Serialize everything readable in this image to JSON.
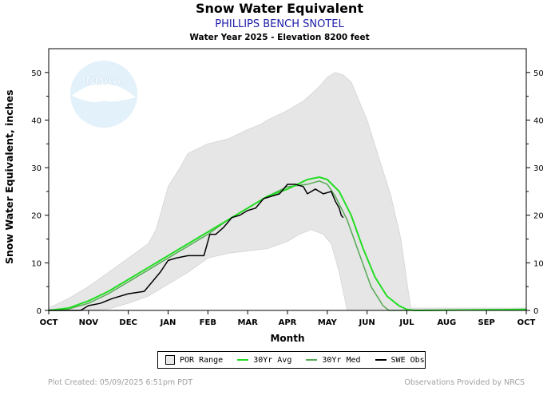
{
  "header": {
    "title": "Snow Water Equivalent",
    "station": "PHILLIPS BENCH SNOTEL",
    "subtitle": "Water Year 2025 -  Elevation 8200 feet"
  },
  "footer": {
    "created": "Plot Created: 05/09/2025 6:51pm PDT",
    "provided": "Observations Provided by NRCS"
  },
  "logo_text": "NOAA",
  "colors": {
    "por_fill": "#e6e6e6",
    "avg": "#22dd22",
    "med": "#55aa55",
    "obs": "#000000"
  },
  "chart_data": {
    "type": "line",
    "title": "Snow Water Equivalent",
    "xlabel": "Month",
    "ylabel": "Snow Water Equivalent, inches",
    "ylim": [
      0,
      55
    ],
    "yticks": [
      0,
      10,
      20,
      30,
      40,
      50
    ],
    "months": [
      "OCT",
      "NOV",
      "DEC",
      "JAN",
      "FEB",
      "MAR",
      "APR",
      "MAY",
      "JUN",
      "JUL",
      "AUG",
      "SEP",
      "OCT"
    ],
    "legend_placement": "bottom-center",
    "legend": [
      "POR Range",
      "30Yr Avg",
      "30Yr Med",
      "SWE Obs"
    ],
    "series": [
      {
        "name": "POR Range",
        "kind": "range",
        "upper": [
          [
            0,
            0.5
          ],
          [
            0.5,
            2.5
          ],
          [
            1,
            5
          ],
          [
            1.5,
            8
          ],
          [
            2,
            11
          ],
          [
            2.5,
            14
          ],
          [
            2.7,
            17
          ],
          [
            3,
            26
          ],
          [
            3.3,
            30
          ],
          [
            3.5,
            33
          ],
          [
            4,
            35
          ],
          [
            4.5,
            36
          ],
          [
            5,
            38
          ],
          [
            5.3,
            39
          ],
          [
            5.5,
            40
          ],
          [
            6,
            42
          ],
          [
            6.4,
            44
          ],
          [
            6.8,
            47
          ],
          [
            7,
            49
          ],
          [
            7.2,
            50
          ],
          [
            7.4,
            49.5
          ],
          [
            7.6,
            48
          ],
          [
            7.8,
            44
          ],
          [
            8,
            40
          ],
          [
            8.3,
            32
          ],
          [
            8.6,
            24
          ],
          [
            8.85,
            15
          ],
          [
            9,
            6
          ],
          [
            9.1,
            0.5
          ],
          [
            12,
            0.5
          ]
        ],
        "lower": [
          [
            0,
            0
          ],
          [
            1,
            0
          ],
          [
            1.5,
            0.3
          ],
          [
            2,
            1.5
          ],
          [
            2.5,
            3
          ],
          [
            3,
            5.5
          ],
          [
            3.5,
            8
          ],
          [
            4,
            11
          ],
          [
            4.5,
            12
          ],
          [
            5,
            12.5
          ],
          [
            5.5,
            13
          ],
          [
            6,
            14.5
          ],
          [
            6.3,
            16
          ],
          [
            6.6,
            17
          ],
          [
            6.9,
            16
          ],
          [
            7.1,
            14
          ],
          [
            7.3,
            8
          ],
          [
            7.45,
            2
          ],
          [
            7.5,
            0
          ],
          [
            12,
            0
          ]
        ]
      },
      {
        "name": "30Yr Avg",
        "kind": "line",
        "points": [
          [
            0,
            0
          ],
          [
            0.5,
            0.5
          ],
          [
            1,
            2
          ],
          [
            1.5,
            4
          ],
          [
            2,
            6.5
          ],
          [
            2.5,
            9
          ],
          [
            3,
            11.5
          ],
          [
            3.5,
            14
          ],
          [
            4,
            16.5
          ],
          [
            4.5,
            19
          ],
          [
            5,
            21.5
          ],
          [
            5.5,
            24
          ],
          [
            6,
            25.5
          ],
          [
            6.5,
            27.5
          ],
          [
            6.8,
            28
          ],
          [
            7,
            27.5
          ],
          [
            7.3,
            25
          ],
          [
            7.6,
            20
          ],
          [
            7.9,
            13
          ],
          [
            8.2,
            7
          ],
          [
            8.5,
            3
          ],
          [
            8.8,
            1
          ],
          [
            9,
            0.2
          ],
          [
            9.2,
            0
          ],
          [
            12,
            0.2
          ]
        ]
      },
      {
        "name": "30Yr Med",
        "kind": "line",
        "points": [
          [
            0,
            0
          ],
          [
            0.5,
            0.3
          ],
          [
            1,
            1.5
          ],
          [
            1.5,
            3.5
          ],
          [
            2,
            6
          ],
          [
            2.5,
            8.5
          ],
          [
            3,
            11
          ],
          [
            3.5,
            13.5
          ],
          [
            4,
            16
          ],
          [
            4.5,
            19
          ],
          [
            5,
            21.5
          ],
          [
            5.5,
            24
          ],
          [
            6,
            26
          ],
          [
            6.5,
            26.5
          ],
          [
            6.8,
            27.2
          ],
          [
            7,
            26.5
          ],
          [
            7.2,
            24
          ],
          [
            7.5,
            19
          ],
          [
            7.8,
            12
          ],
          [
            8.1,
            5
          ],
          [
            8.4,
            1
          ],
          [
            8.55,
            0
          ],
          [
            12,
            0.1
          ]
        ]
      },
      {
        "name": "SWE Obs",
        "kind": "line",
        "points": [
          [
            0,
            0
          ],
          [
            0.8,
            0
          ],
          [
            1,
            1
          ],
          [
            1.3,
            1.5
          ],
          [
            1.6,
            2.5
          ],
          [
            2,
            3.5
          ],
          [
            2.4,
            4
          ],
          [
            2.6,
            6
          ],
          [
            2.8,
            8
          ],
          [
            3,
            10.5
          ],
          [
            3.2,
            11
          ],
          [
            3.5,
            11.5
          ],
          [
            3.9,
            11.5
          ],
          [
            4.05,
            16
          ],
          [
            4.2,
            16
          ],
          [
            4.4,
            17.5
          ],
          [
            4.6,
            19.5
          ],
          [
            4.8,
            20
          ],
          [
            5,
            21
          ],
          [
            5.2,
            21.5
          ],
          [
            5.4,
            23.5
          ],
          [
            5.6,
            24
          ],
          [
            5.8,
            24.5
          ],
          [
            6,
            26.5
          ],
          [
            6.2,
            26.5
          ],
          [
            6.4,
            26
          ],
          [
            6.5,
            24.5
          ],
          [
            6.7,
            25.5
          ],
          [
            6.9,
            24.5
          ],
          [
            7.1,
            25
          ],
          [
            7.2,
            23
          ],
          [
            7.3,
            21.5
          ],
          [
            7.35,
            20
          ],
          [
            7.4,
            19.5
          ]
        ]
      }
    ]
  }
}
